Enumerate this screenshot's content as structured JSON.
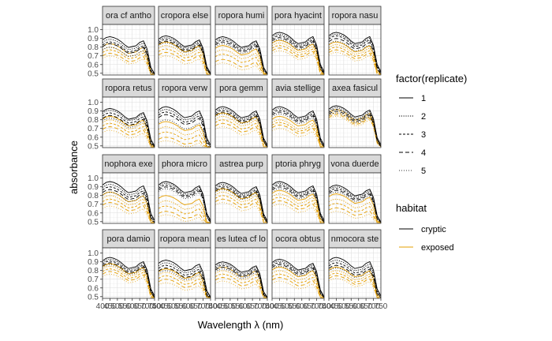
{
  "chart_data": {
    "type": "line",
    "facet_titles": [
      "ora cf antho",
      "cropora else",
      "ropora humi",
      "pora hyacint",
      "ropora nasu",
      "ropora retus",
      "ropora verw",
      "pora gemm",
      "avia stellige",
      "axea fasicul",
      "nophora exe",
      "phora micro",
      "astrea purp",
      "ptoria phryg",
      "vona duerde",
      "pora damio",
      "ropora mean",
      "es lutea cf lo",
      "ocora obtus",
      "nmocora ste"
    ],
    "xlabel": "Wavelength λ (nm)",
    "ylabel": "absorbance",
    "x_tick_labels": [
      "400",
      "450",
      "500",
      "550",
      "600",
      "650",
      "700",
      "750"
    ],
    "x_ticks": [
      400,
      450,
      500,
      550,
      600,
      650,
      700,
      750
    ],
    "xlim": [
      400,
      750
    ],
    "y_ticks": [
      0.5,
      0.6,
      0.7,
      0.8,
      0.9,
      1.0
    ],
    "y_tick_labels": [
      "0.5",
      "0.6",
      "0.7",
      "0.8",
      "0.9",
      "1.0"
    ],
    "ylim": [
      0.48,
      1.06
    ],
    "grid": true,
    "legend_placement": "right",
    "legends": [
      {
        "title": "factor(replicate)",
        "entries": [
          {
            "label": "1",
            "dash": "solid"
          },
          {
            "label": "2",
            "dash": "dotted"
          },
          {
            "label": "3",
            "dash": "dashed-short"
          },
          {
            "label": "4",
            "dash": "dashed"
          },
          {
            "label": "5",
            "dash": "dotted-fine"
          }
        ]
      },
      {
        "title": "habitat",
        "entries": [
          {
            "label": "cryptic",
            "color": "#000000"
          },
          {
            "label": "exposed",
            "color": "#E69F00"
          }
        ]
      }
    ],
    "colors": {
      "cryptic": "#000000",
      "exposed": "#E69F00"
    },
    "wavelengths": [
      400,
      425,
      450,
      475,
      500,
      525,
      550,
      575,
      600,
      625,
      650,
      675,
      700,
      725,
      750
    ],
    "series_shape": [
      0.93,
      0.96,
      0.97,
      0.96,
      0.94,
      0.91,
      0.87,
      0.84,
      0.85,
      0.86,
      0.9,
      0.92,
      0.82,
      0.6,
      0.52
    ],
    "panel_levels": [
      {
        "cryptic": [
          0.92,
          0.89,
          0.86,
          0.84,
          0.8
        ],
        "exposed": [
          0.84,
          0.8,
          0.77,
          0.73,
          0.7
        ]
      },
      {
        "cryptic": [
          0.93,
          0.91,
          0.89,
          0.87,
          0.85
        ],
        "exposed": [
          0.86,
          0.82,
          0.78,
          0.74,
          0.7
        ]
      },
      {
        "cryptic": [
          0.92,
          0.9,
          0.88,
          0.86,
          0.84
        ],
        "exposed": [
          0.82,
          0.77,
          0.72,
          0.66,
          0.62
        ]
      },
      {
        "cryptic": [
          0.97,
          0.95,
          0.93,
          0.91,
          0.89
        ],
        "exposed": [
          0.88,
          0.85,
          0.82,
          0.79,
          0.76
        ]
      },
      {
        "cryptic": [
          0.97,
          0.95,
          0.93,
          0.9,
          0.87
        ],
        "exposed": [
          0.86,
          0.83,
          0.8,
          0.77,
          0.74
        ]
      },
      {
        "cryptic": [
          0.93,
          0.91,
          0.88,
          0.85,
          0.82
        ],
        "exposed": [
          0.84,
          0.8,
          0.76,
          0.72,
          0.68
        ]
      },
      {
        "cryptic": [
          0.95,
          0.92,
          0.89,
          0.86,
          0.8
        ],
        "exposed": [
          0.78,
          0.72,
          0.66,
          0.6,
          0.56
        ]
      },
      {
        "cryptic": [
          0.95,
          0.93,
          0.91,
          0.89,
          0.87
        ],
        "exposed": [
          0.88,
          0.84,
          0.8,
          0.76,
          0.72
        ]
      },
      {
        "cryptic": [
          0.95,
          0.93,
          0.91,
          0.89,
          0.87
        ],
        "exposed": [
          0.84,
          0.8,
          0.77,
          0.74,
          0.7
        ]
      },
      {
        "cryptic": [
          0.96,
          0.94,
          0.92,
          0.9,
          0.88
        ],
        "exposed": [
          0.92,
          0.9,
          0.88,
          0.86,
          0.84
        ]
      },
      {
        "cryptic": [
          0.96,
          0.93,
          0.9,
          0.87,
          0.84
        ],
        "exposed": [
          0.84,
          0.8,
          0.76,
          0.72,
          0.68
        ]
      },
      {
        "cryptic": [
          0.96,
          0.94,
          0.92,
          0.9,
          0.88
        ],
        "exposed": [
          0.8,
          0.74,
          0.68,
          0.62,
          0.58
        ]
      },
      {
        "cryptic": [
          0.95,
          0.93,
          0.91,
          0.89,
          0.87
        ],
        "exposed": [
          0.88,
          0.84,
          0.8,
          0.76,
          0.72
        ]
      },
      {
        "cryptic": [
          0.96,
          0.94,
          0.92,
          0.9,
          0.88
        ],
        "exposed": [
          0.86,
          0.82,
          0.78,
          0.74,
          0.7
        ]
      },
      {
        "cryptic": [
          0.92,
          0.9,
          0.88,
          0.86,
          0.84
        ],
        "exposed": [
          0.82,
          0.76,
          0.71,
          0.66,
          0.62
        ]
      },
      {
        "cryptic": [
          0.95,
          0.93,
          0.91,
          0.89,
          0.87
        ],
        "exposed": [
          0.88,
          0.85,
          0.82,
          0.79,
          0.76
        ]
      },
      {
        "cryptic": [
          0.92,
          0.89,
          0.86,
          0.83,
          0.8
        ],
        "exposed": [
          0.82,
          0.78,
          0.74,
          0.7,
          0.66
        ]
      },
      {
        "cryptic": [
          0.9,
          0.88,
          0.86,
          0.84,
          0.82
        ],
        "exposed": [
          0.84,
          0.8,
          0.76,
          0.72,
          0.68
        ]
      },
      {
        "cryptic": [
          0.93,
          0.91,
          0.89,
          0.87,
          0.85
        ],
        "exposed": [
          0.84,
          0.8,
          0.76,
          0.72,
          0.68
        ]
      },
      {
        "cryptic": [
          0.95,
          0.92,
          0.89,
          0.86,
          0.83
        ],
        "exposed": [
          0.84,
          0.8,
          0.77,
          0.74,
          0.71
        ]
      }
    ]
  }
}
